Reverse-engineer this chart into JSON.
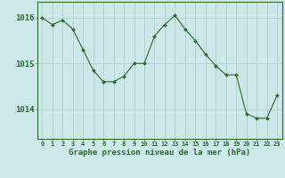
{
  "x": [
    0,
    1,
    2,
    3,
    4,
    5,
    6,
    7,
    8,
    9,
    10,
    11,
    12,
    13,
    14,
    15,
    16,
    17,
    18,
    19,
    20,
    21,
    22,
    23
  ],
  "y": [
    1016.0,
    1015.85,
    1015.95,
    1015.75,
    1015.3,
    1014.85,
    1014.6,
    1014.6,
    1014.72,
    1015.0,
    1015.0,
    1015.6,
    1015.85,
    1016.05,
    1015.75,
    1015.5,
    1015.2,
    1014.95,
    1014.75,
    1014.75,
    1013.9,
    1013.8,
    1013.8,
    1014.3
  ],
  "line_color": "#2d6a2d",
  "marker_color": "#2d6a2d",
  "bg_color": "#cce8e8",
  "grid_color": "#aacccc",
  "border_color": "#2d6a2d",
  "xlabel": "Graphe pression niveau de la mer (hPa)",
  "xlabel_color": "#2d6a2d",
  "yticks": [
    1014,
    1015,
    1016
  ],
  "ylim": [
    1013.35,
    1016.35
  ],
  "xlim": [
    -0.5,
    23.5
  ],
  "tick_color": "#2d6a2d",
  "xlabel_fontsize": 6.5,
  "ytick_fontsize": 6.5,
  "xtick_fontsize": 5.0
}
